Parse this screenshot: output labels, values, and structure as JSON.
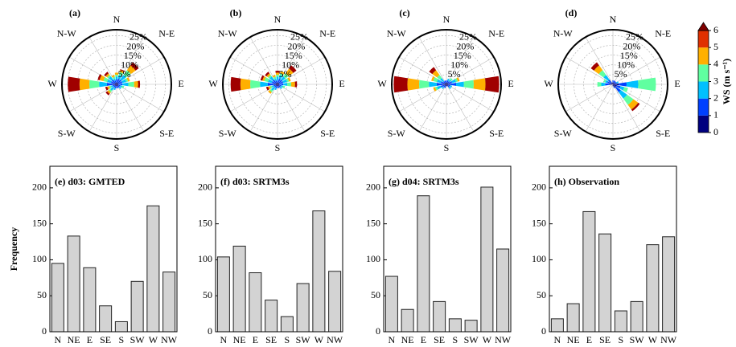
{
  "chart_data": [
    {
      "type": "windrose",
      "panel_label": "(a)",
      "direction_labels": [
        "N",
        "N-E",
        "E",
        "S-E",
        "S",
        "S-W",
        "W",
        "N-W"
      ],
      "rlim": [
        0,
        28
      ],
      "rticks": [
        {
          "value": 5,
          "label": "5%"
        },
        {
          "value": 10,
          "label": "10%"
        },
        {
          "value": 15,
          "label": "15%"
        },
        {
          "value": 20,
          "label": "20%"
        },
        {
          "value": 25,
          "label": "25%"
        }
      ],
      "series": [
        {
          "color": "#00007f",
          "values": [
            1,
            1,
            1,
            1,
            1,
            1,
            1,
            1,
            1,
            1,
            1,
            1,
            2,
            1,
            1,
            1
          ]
        },
        {
          "color": "#0040ff",
          "values": [
            1.5,
            2,
            2,
            2,
            2,
            1,
            1,
            1,
            1,
            1,
            1,
            1,
            3,
            2,
            2,
            1
          ]
        },
        {
          "color": "#00c0ff",
          "values": [
            1.5,
            2,
            3,
            2,
            3,
            1,
            1,
            0,
            0,
            1,
            2,
            1,
            4,
            2,
            2,
            1
          ]
        },
        {
          "color": "#60ffa0",
          "values": [
            1,
            1.5,
            3,
            1,
            3,
            1,
            0,
            0,
            0,
            0,
            1,
            1,
            5,
            2,
            1,
            1
          ]
        },
        {
          "color": "#ffb000",
          "values": [
            1,
            1,
            3,
            1,
            2,
            0,
            0,
            0,
            0,
            0,
            1,
            1,
            5,
            2,
            1,
            1
          ]
        },
        {
          "color": "#a00000",
          "values": [
            0,
            0.5,
            2,
            0,
            1,
            0,
            0,
            0,
            0,
            0,
            1,
            1,
            6,
            1,
            1,
            0
          ]
        }
      ]
    },
    {
      "type": "windrose",
      "panel_label": "(b)",
      "direction_labels": [
        "N",
        "N-E",
        "E",
        "S-E",
        "S",
        "S-W",
        "W",
        "N-W"
      ],
      "rlim": [
        0,
        28
      ],
      "rticks": [
        {
          "value": 5,
          "label": "5%"
        },
        {
          "value": 10,
          "label": "10%"
        },
        {
          "value": 15,
          "label": "15%"
        },
        {
          "value": 20,
          "label": "20%"
        },
        {
          "value": 25,
          "label": "25%"
        }
      ],
      "series": [
        {
          "color": "#00007f",
          "values": [
            1,
            1,
            1,
            1,
            1,
            1,
            1,
            1,
            1,
            1,
            1,
            1,
            2,
            1,
            1,
            1
          ]
        },
        {
          "color": "#0040ff",
          "values": [
            1,
            2,
            2,
            2,
            2,
            1,
            1,
            1,
            1,
            1,
            1,
            1,
            3,
            2,
            2,
            1
          ]
        },
        {
          "color": "#00c0ff",
          "values": [
            2,
            2,
            2,
            2,
            2,
            1,
            1,
            0,
            0,
            1,
            2,
            1,
            4,
            2,
            2,
            1
          ]
        },
        {
          "color": "#60ffa0",
          "values": [
            1,
            1,
            2,
            1,
            2,
            1,
            0,
            0,
            0,
            0,
            1,
            1,
            5,
            2,
            1,
            1
          ]
        },
        {
          "color": "#ffb000",
          "values": [
            1,
            1,
            3,
            1,
            2,
            0,
            0,
            0,
            0,
            0,
            1,
            1,
            5,
            1,
            1,
            1
          ]
        },
        {
          "color": "#a00000",
          "values": [
            1,
            0,
            2,
            0,
            1,
            0,
            0,
            0,
            0,
            0,
            0,
            1,
            5,
            1,
            1,
            0
          ]
        }
      ]
    },
    {
      "type": "windrose",
      "panel_label": "(c)",
      "direction_labels": [
        "N",
        "N-E",
        "E",
        "S-E",
        "S",
        "S-W",
        "W",
        "N-W"
      ],
      "rlim": [
        0,
        28
      ],
      "rticks": [
        {
          "value": 5,
          "label": "5%"
        },
        {
          "value": 10,
          "label": "10%"
        },
        {
          "value": 15,
          "label": "15%"
        },
        {
          "value": 20,
          "label": "20%"
        },
        {
          "value": 25,
          "label": "25%"
        }
      ],
      "series": [
        {
          "color": "#00007f",
          "values": [
            1,
            1,
            1,
            1,
            2,
            1,
            1,
            1,
            1,
            1,
            1,
            1,
            2,
            1,
            1,
            1
          ]
        },
        {
          "color": "#0040ff",
          "values": [
            1,
            1,
            1,
            2,
            3,
            1,
            1,
            0,
            0,
            1,
            1,
            2,
            3,
            2,
            1,
            1
          ]
        },
        {
          "color": "#00c0ff",
          "values": [
            0,
            1,
            1,
            2,
            4,
            1,
            1,
            0,
            0,
            0,
            1,
            2,
            4,
            2,
            2,
            0
          ]
        },
        {
          "color": "#60ffa0",
          "values": [
            0,
            0,
            1,
            1,
            5,
            0,
            0,
            0,
            0,
            0,
            0,
            1,
            5,
            2,
            2,
            0
          ]
        },
        {
          "color": "#ffb000",
          "values": [
            0,
            0,
            0,
            1,
            6,
            0,
            0,
            0,
            0,
            0,
            0,
            1,
            6,
            1,
            3,
            0
          ]
        },
        {
          "color": "#a00000",
          "values": [
            0,
            0,
            0,
            0,
            7,
            0,
            0,
            0,
            0,
            0,
            0,
            0,
            7,
            0,
            2,
            0
          ]
        }
      ]
    },
    {
      "type": "windrose",
      "panel_label": "(d)",
      "direction_labels": [
        "N",
        "N-E",
        "E",
        "S-E",
        "S",
        "S-W",
        "W",
        "N-W"
      ],
      "rlim": [
        0,
        28
      ],
      "rticks": [
        {
          "value": 5,
          "label": "5%"
        },
        {
          "value": 10,
          "label": "10%"
        },
        {
          "value": 15,
          "label": "15%"
        },
        {
          "value": 20,
          "label": "20%"
        },
        {
          "value": 25,
          "label": "25%"
        }
      ],
      "series": [
        {
          "color": "#00007f",
          "values": [
            1,
            1,
            1,
            1,
            3,
            2,
            2,
            1,
            1,
            0,
            0,
            0,
            2,
            1,
            1,
            1
          ]
        },
        {
          "color": "#0040ff",
          "values": [
            1,
            1,
            1,
            1,
            4,
            2,
            3,
            1,
            0,
            0,
            0,
            0,
            2,
            2,
            2,
            0
          ]
        },
        {
          "color": "#00c0ff",
          "values": [
            0,
            0,
            0,
            1,
            6,
            2,
            4,
            0,
            0,
            0,
            0,
            0,
            2,
            1,
            3,
            0
          ]
        },
        {
          "color": "#60ffa0",
          "values": [
            0,
            0,
            0,
            0,
            9,
            2,
            4,
            0,
            0,
            0,
            0,
            0,
            2,
            1,
            3,
            0
          ]
        },
        {
          "color": "#ffb000",
          "values": [
            0,
            0,
            0,
            0,
            0,
            0,
            3,
            0,
            0,
            0,
            0,
            0,
            0,
            0,
            3,
            0
          ]
        },
        {
          "color": "#a00000",
          "values": [
            0,
            0,
            0,
            0,
            0,
            0,
            1,
            0,
            0,
            0,
            0,
            0,
            0,
            0,
            2,
            0
          ]
        }
      ]
    },
    {
      "type": "bar",
      "title": "(e) d03: GMTED",
      "y_label": "Frequency",
      "color": "#d3d3d3",
      "categories": [
        "N",
        "NE",
        "E",
        "SE",
        "S",
        "SW",
        "W",
        "NW"
      ],
      "values": [
        95,
        133,
        89,
        36,
        14,
        70,
        175,
        83
      ],
      "ylim": [
        0,
        230
      ],
      "yticks": [
        0,
        50,
        100,
        150,
        200
      ]
    },
    {
      "type": "bar",
      "title": "(f) d03: SRTM3s",
      "color": "#d3d3d3",
      "categories": [
        "N",
        "NE",
        "E",
        "SE",
        "S",
        "SW",
        "W",
        "NW"
      ],
      "values": [
        104,
        119,
        82,
        44,
        21,
        67,
        168,
        84
      ],
      "ylim": [
        0,
        230
      ],
      "yticks": [
        0,
        50,
        100,
        150,
        200
      ]
    },
    {
      "type": "bar",
      "title": "(g) d04: SRTM3s",
      "color": "#d3d3d3",
      "categories": [
        "N",
        "NE",
        "E",
        "SE",
        "S",
        "SW",
        "W",
        "NW"
      ],
      "values": [
        77,
        31,
        189,
        42,
        18,
        16,
        201,
        115
      ],
      "ylim": [
        0,
        230
      ],
      "yticks": [
        0,
        50,
        100,
        150,
        200
      ]
    },
    {
      "type": "bar",
      "title": "(h) Observation",
      "color": "#d3d3d3",
      "categories": [
        "N",
        "NE",
        "E",
        "SE",
        "S",
        "SW",
        "W",
        "NW"
      ],
      "values": [
        18,
        39,
        167,
        136,
        29,
        42,
        121,
        132
      ],
      "ylim": [
        0,
        230
      ],
      "yticks": [
        0,
        50,
        100,
        150,
        200
      ]
    },
    {
      "type": "colorbar",
      "label": "WS (m s⁻¹)",
      "lim": [
        0,
        6
      ],
      "ticks": [
        0,
        1,
        2,
        3,
        4,
        5,
        6
      ],
      "colors": [
        "#00007f",
        "#0040ff",
        "#00c0ff",
        "#60ffa0",
        "#ffb000",
        "#e03000"
      ],
      "over_color": "#800000"
    }
  ]
}
